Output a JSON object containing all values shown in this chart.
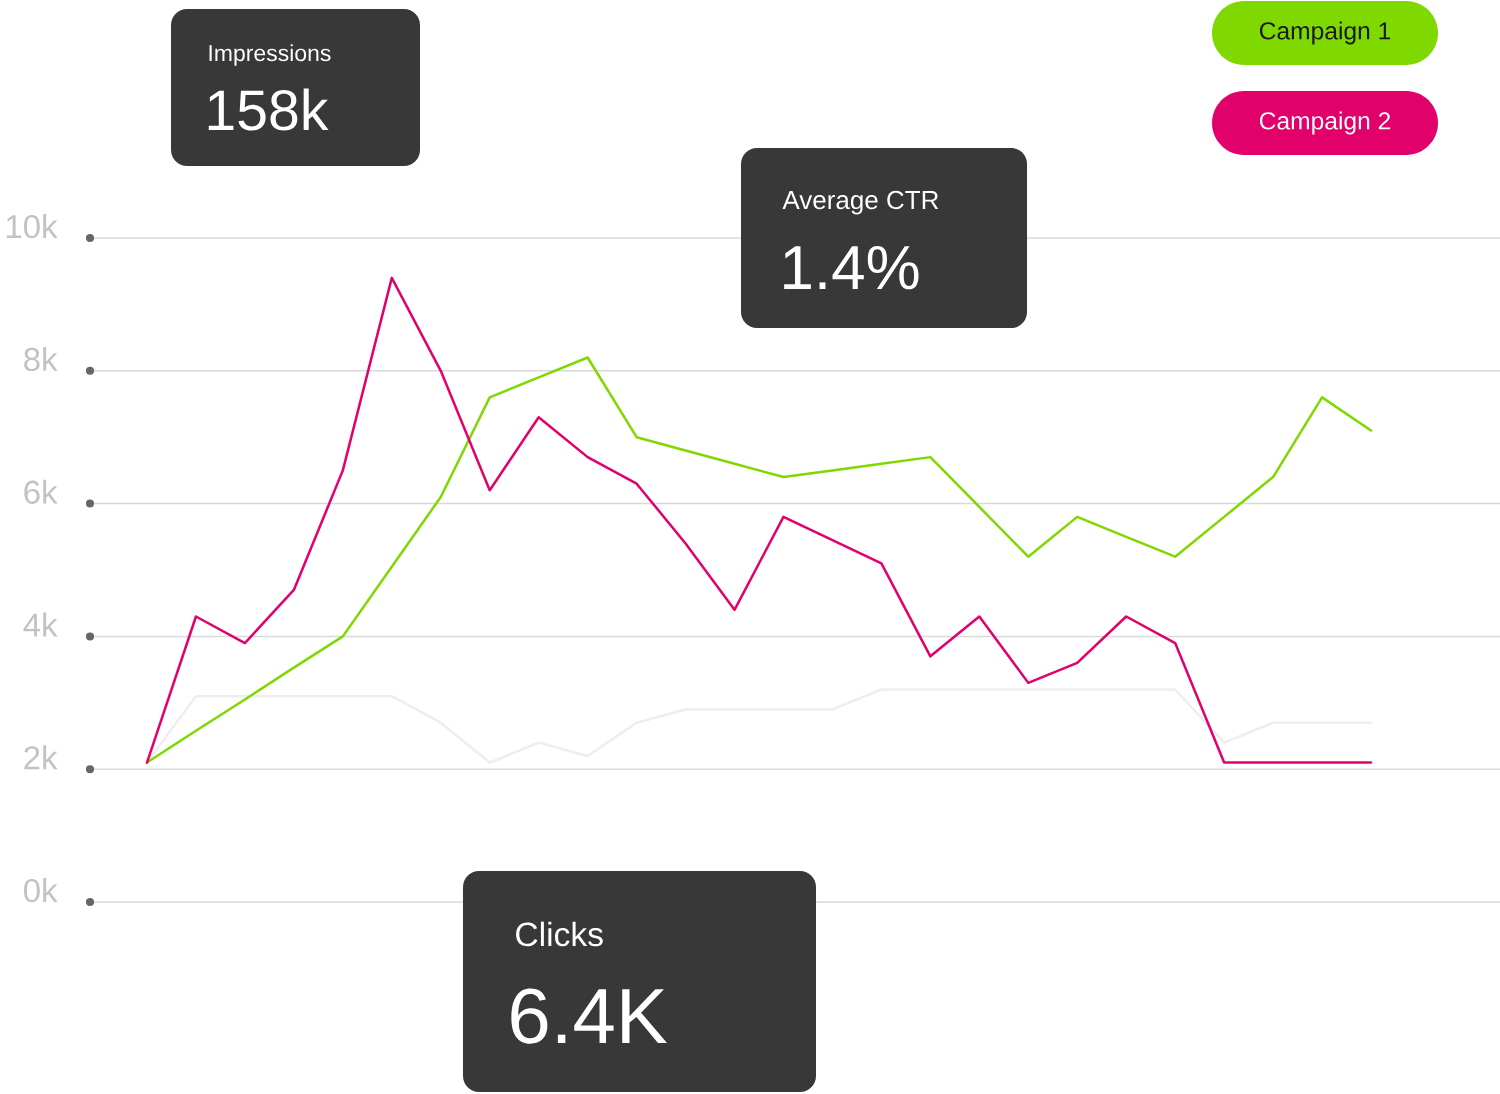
{
  "chart_data": {
    "type": "line",
    "categories": [
      null,
      null,
      null,
      null,
      null,
      null,
      null,
      null,
      null,
      null,
      null,
      null,
      null,
      null,
      null,
      null,
      null,
      null,
      null,
      null,
      null,
      null,
      null,
      null,
      null,
      null
    ],
    "series": [
      {
        "color": "#eeeeee",
        "values": [
          2100,
          3100,
          3100,
          3100,
          3100,
          3100,
          2700,
          2100,
          2400,
          2200,
          2700,
          2900,
          2900,
          2900,
          2900,
          3200,
          3200,
          3200,
          3200,
          3200,
          3200,
          3200,
          2400,
          2700,
          2700,
          2700
        ]
      },
      {
        "name": "Campaign 1",
        "color": "#7fd800",
        "values": [
          2100,
          2580,
          3050,
          3530,
          4000,
          5050,
          6100,
          7600,
          7900,
          8200,
          7000,
          6800,
          6600,
          6400,
          6500,
          6600,
          6700,
          5950,
          5200,
          5800,
          5500,
          5200,
          5800,
          6400,
          7600,
          7100
        ]
      },
      {
        "name": "Campaign 2",
        "color": "#e2006b",
        "values": [
          2100,
          4300,
          3900,
          4700,
          6500,
          9400,
          8000,
          6200,
          7300,
          6700,
          6300,
          5400,
          4400,
          5800,
          5450,
          5100,
          3700,
          4300,
          3300,
          3600,
          4300,
          3900,
          2100,
          2100,
          2100,
          2100
        ]
      }
    ],
    "ylim": [
      0,
      10000
    ],
    "yticks": [
      {
        "value": 0,
        "label": "0k"
      },
      {
        "value": 2000,
        "label": "2k"
      },
      {
        "value": 4000,
        "label": "4k"
      },
      {
        "value": 6000,
        "label": "6k"
      },
      {
        "value": 8000,
        "label": "8k"
      },
      {
        "value": 10000,
        "label": "10k"
      }
    ],
    "grid": "y",
    "legend": "top right",
    "tick_labels": "y",
    "annotations": [
      "Impressions",
      "158k",
      "Average CTR",
      "1.4%",
      "Clicks",
      "6.4K"
    ]
  }
}
